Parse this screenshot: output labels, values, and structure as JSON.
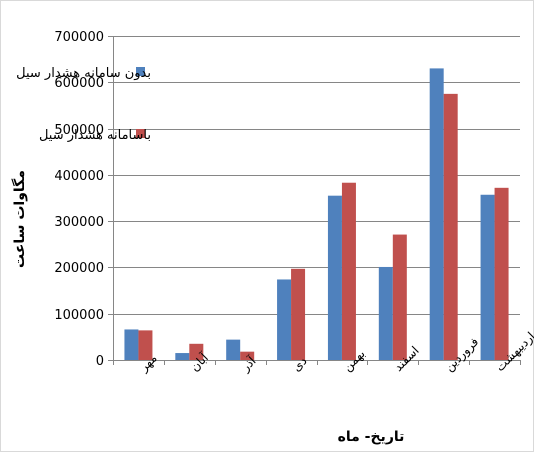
{
  "chart_data": {
    "type": "bar",
    "categories": [
      "مهر",
      "آبان",
      "آذر",
      "دی",
      "بهمن",
      "اسفند",
      "فروردین",
      "اردیبهشت"
    ],
    "series": [
      {
        "name": "بدون سامانه هشدار سیل",
        "color": "#4F81BD",
        "values": [
          66000,
          15000,
          44000,
          174000,
          355000,
          201000,
          630000,
          357000
        ]
      },
      {
        "name": "باسامانه هشدار سیل",
        "color": "#C0504D",
        "values": [
          64000,
          35000,
          18000,
          197000,
          383000,
          271000,
          575000,
          372000
        ]
      }
    ],
    "ylim": [
      0,
      700000
    ],
    "yticks": [
      0,
      100000,
      200000,
      300000,
      400000,
      500000,
      600000,
      700000
    ],
    "ytick_labels": [
      "0",
      "100000",
      "200000",
      "300000",
      "400000",
      "500000",
      "600000",
      "700000"
    ],
    "xlabel": "تاریخ- ماه",
    "ylabel": "مگاوات ساعت",
    "grid": true,
    "legend_position": "top-left inside plot"
  }
}
